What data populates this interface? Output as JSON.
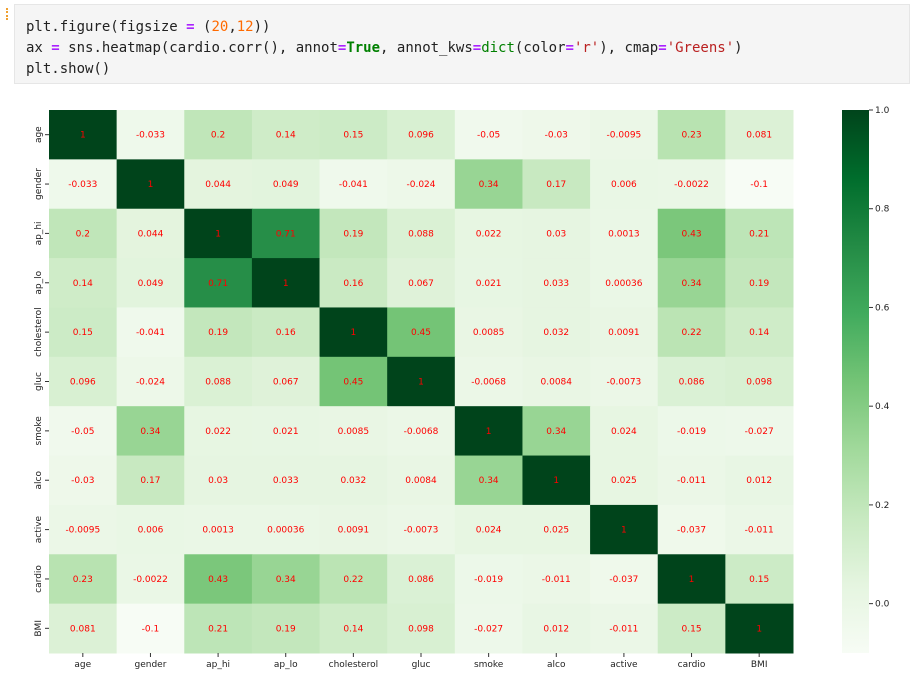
{
  "code": {
    "line1_a": "plt.figure(figsize ",
    "line1_eq": "=",
    "line1_b": " (",
    "line1_n1": "20",
    "line1_c": ",",
    "line1_n2": "12",
    "line1_d": "))",
    "line2_a": "ax ",
    "line2_eq": "=",
    "line2_b": " sns.heatmap(cardio.corr(), annot",
    "line2_eq2": "=",
    "line2_true": "True",
    "line2_c": ", annot_kws",
    "line2_eq3": "=",
    "line2_dict": "dict",
    "line2_d": "(color",
    "line2_eq4": "=",
    "line2_r": "'r'",
    "line2_e": "), cmap",
    "line2_eq5": "=",
    "line2_greens": "'Greens'",
    "line2_f": ")",
    "line3": "plt.show()"
  },
  "chart_data": {
    "type": "heatmap",
    "labels": [
      "age",
      "gender",
      "ap_hi",
      "ap_lo",
      "cholesterol",
      "gluc",
      "smoke",
      "alco",
      "active",
      "cardio",
      "BMI"
    ],
    "matrix": [
      [
        1,
        -0.033,
        0.2,
        0.14,
        0.15,
        0.096,
        -0.05,
        -0.03,
        -0.0095,
        0.23,
        0.081
      ],
      [
        -0.033,
        1,
        0.044,
        0.049,
        -0.041,
        -0.024,
        0.34,
        0.17,
        0.006,
        -0.0022,
        -0.1
      ],
      [
        0.2,
        0.044,
        1,
        0.71,
        0.19,
        0.088,
        0.022,
        0.03,
        0.0013,
        0.43,
        0.21
      ],
      [
        0.14,
        0.049,
        0.71,
        1,
        0.16,
        0.067,
        0.021,
        0.033,
        0.00036,
        0.34,
        0.19
      ],
      [
        0.15,
        -0.041,
        0.19,
        0.16,
        1,
        0.45,
        0.0085,
        0.032,
        0.0091,
        0.22,
        0.14
      ],
      [
        0.096,
        -0.024,
        0.088,
        0.067,
        0.45,
        1,
        -0.0068,
        0.0084,
        -0.0073,
        0.086,
        0.098
      ],
      [
        -0.05,
        0.34,
        0.022,
        0.021,
        0.0085,
        -0.0068,
        1,
        0.34,
        0.024,
        -0.019,
        -0.027
      ],
      [
        -0.03,
        0.17,
        0.03,
        0.033,
        0.032,
        0.0084,
        0.34,
        1,
        0.025,
        -0.011,
        0.012
      ],
      [
        -0.0095,
        0.006,
        0.0013,
        0.00036,
        0.0091,
        -0.0073,
        0.024,
        0.025,
        1,
        -0.037,
        -0.011
      ],
      [
        0.23,
        -0.0022,
        0.43,
        0.34,
        0.22,
        0.086,
        -0.019,
        -0.011,
        -0.037,
        1,
        0.15
      ],
      [
        0.081,
        -0.1,
        0.21,
        0.19,
        0.14,
        0.098,
        -0.027,
        0.012,
        -0.011,
        0.15,
        1
      ]
    ],
    "colormap": "Greens",
    "annotation_color": "#ff0000",
    "vmin": -0.1,
    "vmax": 1.0,
    "colorbar_ticks": [
      0.0,
      0.2,
      0.4,
      0.6,
      0.8,
      1.0
    ],
    "colorbar_tick_labels": [
      "0.0",
      "0.2",
      "0.4",
      "0.6",
      "0.8",
      "1.0"
    ],
    "colorbar_placement": "right",
    "title": "",
    "xlabel": "",
    "ylabel": ""
  }
}
